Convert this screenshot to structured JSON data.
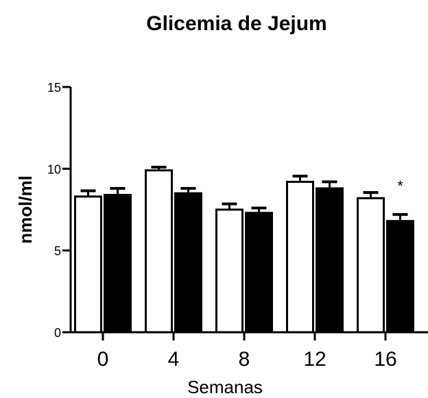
{
  "chart_data": {
    "type": "bar",
    "title": "Glicemia de Jejum",
    "xlabel": "Semanas",
    "ylabel": "nmol/ml",
    "categories": [
      "0",
      "4",
      "8",
      "12",
      "16"
    ],
    "ylim": [
      0,
      15
    ],
    "yticks": [
      0,
      5,
      10,
      15
    ],
    "series": [
      {
        "values": [
          8.3,
          9.9,
          7.5,
          9.2,
          8.2
        ],
        "errors": [
          0.35,
          0.2,
          0.35,
          0.35,
          0.35
        ],
        "fill": "#ffffff"
      },
      {
        "values": [
          8.4,
          8.5,
          7.3,
          8.8,
          6.8
        ],
        "errors": [
          0.4,
          0.3,
          0.3,
          0.4,
          0.4
        ],
        "fill": "#000000"
      }
    ],
    "annotations": [
      {
        "category": "16",
        "series": 1,
        "text": "*"
      }
    ],
    "grid": false
  }
}
